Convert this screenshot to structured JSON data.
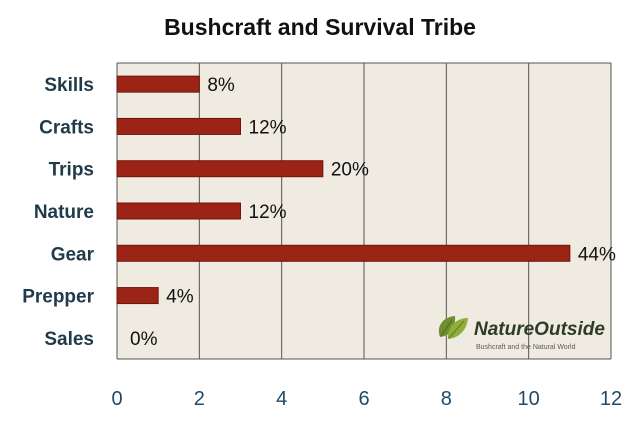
{
  "chart_data": {
    "type": "bar",
    "orientation": "horizontal",
    "title": "Bushcraft and Survival Tribe",
    "categories": [
      "Skills",
      "Crafts",
      "Trips",
      "Nature",
      "Gear",
      "Prepper",
      "Sales"
    ],
    "values": [
      2,
      3,
      5,
      3,
      11,
      1,
      0
    ],
    "data_labels": [
      "8%",
      "12%",
      "20%",
      "12%",
      "44%",
      "4%",
      "0%"
    ],
    "xlim": [
      0,
      12
    ],
    "xticks": [
      "0",
      "2",
      "4",
      "6",
      "8",
      "10",
      "12"
    ],
    "xlabel": "",
    "ylabel": "",
    "grid": "vertical",
    "legend": "none",
    "colors": {
      "bar": "#9b2416",
      "bar_edge": "#6e160c",
      "plot_bg": "#efebe1",
      "grid": "#555555"
    }
  },
  "watermark": {
    "name": "NatureOutside",
    "tagline": "Bushcraft and the Natural World",
    "icon": "leaf-icon"
  }
}
